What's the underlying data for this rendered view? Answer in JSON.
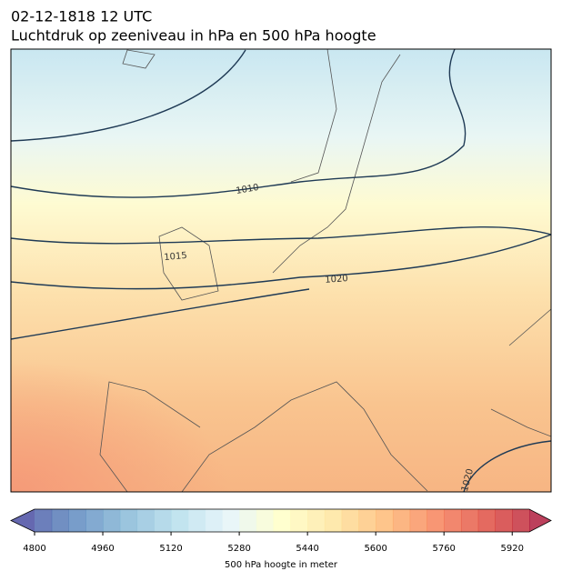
{
  "header": {
    "datetime": "02-12-1818 12 UTC",
    "title": "Luchtdruk op zeeniveau in hPa en 500 hPa hoogte"
  },
  "map": {
    "isobar_labels": [
      "1010",
      "1015",
      "1020",
      "1020"
    ]
  },
  "colorbar": {
    "colormap": "RdYlBu_r",
    "lim": [
      4800,
      5960
    ],
    "step": 40,
    "ticks": [
      4800,
      4960,
      5120,
      5280,
      5440,
      5600,
      5760,
      5920
    ],
    "label": "500 hPa hoogte in meter"
  }
}
